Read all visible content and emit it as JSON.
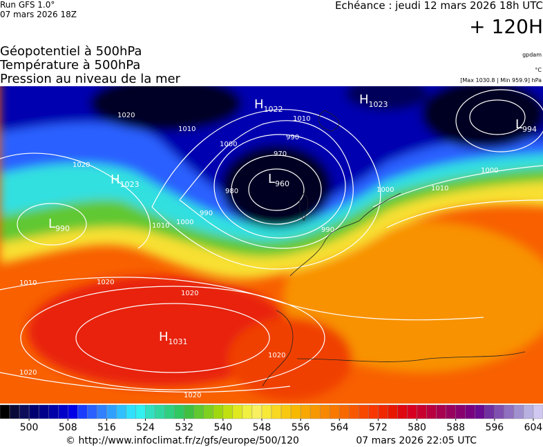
{
  "header": {
    "run": "Run GFS 1.0°",
    "run_date": "07 mars 2026 18Z",
    "valid": "Echéance : jeudi 12 mars 2026 18h UTC",
    "lead": "+ 120H"
  },
  "titles": [
    "Géopotentiel à 500hPa",
    "Température à 500hPa",
    "Pression au niveau de la mer"
  ],
  "units": {
    "geopotential": "gpdam",
    "temperature": "°C",
    "pressure": "[Max 1030.8 | Min 959.9] hPa"
  },
  "centers": [
    {
      "letter": "H",
      "value": "1022"
    },
    {
      "letter": "H",
      "value": "1023"
    },
    {
      "letter": "L",
      "value": "994"
    },
    {
      "letter": "H",
      "value": "1023"
    },
    {
      "letter": "L",
      "value": "960"
    },
    {
      "letter": "L",
      "value": "990"
    },
    {
      "letter": "H",
      "value": "1031"
    }
  ],
  "isobar_labels": [
    "1020",
    "1010",
    "1020",
    "1000",
    "990",
    "970",
    "980",
    "990",
    "1000",
    "1010",
    "1020",
    "1010",
    "1000",
    "1010",
    "1020",
    "1020",
    "1020",
    "990",
    "1010",
    "1020",
    "1000"
  ],
  "colorbar": {
    "lim": [
      494,
      606
    ],
    "step": 2,
    "ticks": [
      500,
      508,
      516,
      524,
      532,
      540,
      548,
      556,
      564,
      572,
      580,
      588,
      596,
      604
    ],
    "colors": [
      "#000000",
      "#0a0a3a",
      "#0d0d5c",
      "#000070",
      "#00008a",
      "#0000a8",
      "#0000c8",
      "#0000e6",
      "#1a3cff",
      "#2a60ff",
      "#3080ff",
      "#30a0ff",
      "#30c0ff",
      "#30e0ff",
      "#30f0f0",
      "#30e0c0",
      "#30d8a0",
      "#30d080",
      "#30c860",
      "#40c040",
      "#60c830",
      "#80d020",
      "#a0d810",
      "#c0e010",
      "#e0e820",
      "#f0f040",
      "#f8f060",
      "#f8e838",
      "#f8d820",
      "#f8c810",
      "#f8b800",
      "#f8a800",
      "#f89800",
      "#f88800",
      "#f87800",
      "#f86800",
      "#f85800",
      "#f84800",
      "#f83800",
      "#f02800",
      "#e81800",
      "#e00810",
      "#d80020",
      "#c80030",
      "#b80040",
      "#a80050",
      "#980060",
      "#880070",
      "#780080",
      "#6a0a90",
      "#7030a0",
      "#8050b0",
      "#9070c0",
      "#a090d0",
      "#b8b0e0",
      "#d0c8f0"
    ]
  },
  "footer": {
    "source": "© http://www.infoclimat.fr/z/gfs/europe/500/120",
    "generated": "07 mars 2026 22:05 UTC"
  }
}
